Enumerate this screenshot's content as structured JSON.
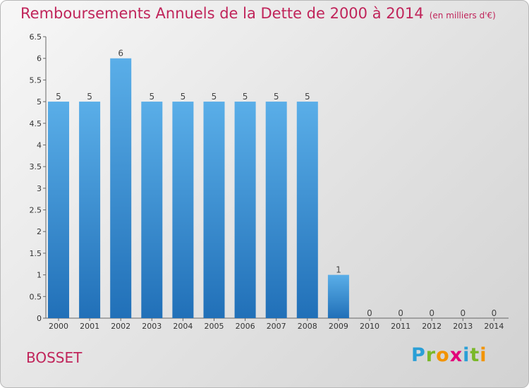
{
  "chart_data": {
    "type": "bar",
    "title": "Remboursements Annuels de la Dette de 2000 à 2014",
    "unit": "(en milliers d'€)",
    "categories": [
      "2000",
      "2001",
      "2002",
      "2003",
      "2004",
      "2005",
      "2006",
      "2007",
      "2008",
      "2009",
      "2010",
      "2011",
      "2012",
      "2013",
      "2014"
    ],
    "values": [
      5,
      5,
      6,
      5,
      5,
      5,
      5,
      5,
      5,
      1,
      0,
      0,
      0,
      0,
      0
    ],
    "data_labels": [
      "5",
      "5",
      "6",
      "5",
      "5",
      "5",
      "5",
      "5",
      "5",
      "1",
      "0",
      "0",
      "0",
      "0",
      "0"
    ],
    "ylim": [
      0,
      6.5
    ],
    "yticks": [
      "0",
      "0.5",
      "1",
      "1.5",
      "2",
      "2.5",
      "3",
      "3.5",
      "4",
      "4.5",
      "5",
      "5.5",
      "6",
      "6.5"
    ],
    "grid": false,
    "xlabel": "",
    "ylabel": "",
    "bar_color_top": "#5aaee8",
    "bar_color_bottom": "#2170b8"
  },
  "commune": "BOSSET",
  "logo": {
    "text": "Proxiti",
    "letters": [
      "P",
      "r",
      "o",
      "x",
      "i",
      "t",
      "i"
    ],
    "colors": [
      "#2a9fd6",
      "#7ab829",
      "#f29400",
      "#e2007a",
      "#2a9fd6",
      "#7ab829",
      "#f29400"
    ]
  },
  "colors": {
    "accent": "#c0245a"
  }
}
